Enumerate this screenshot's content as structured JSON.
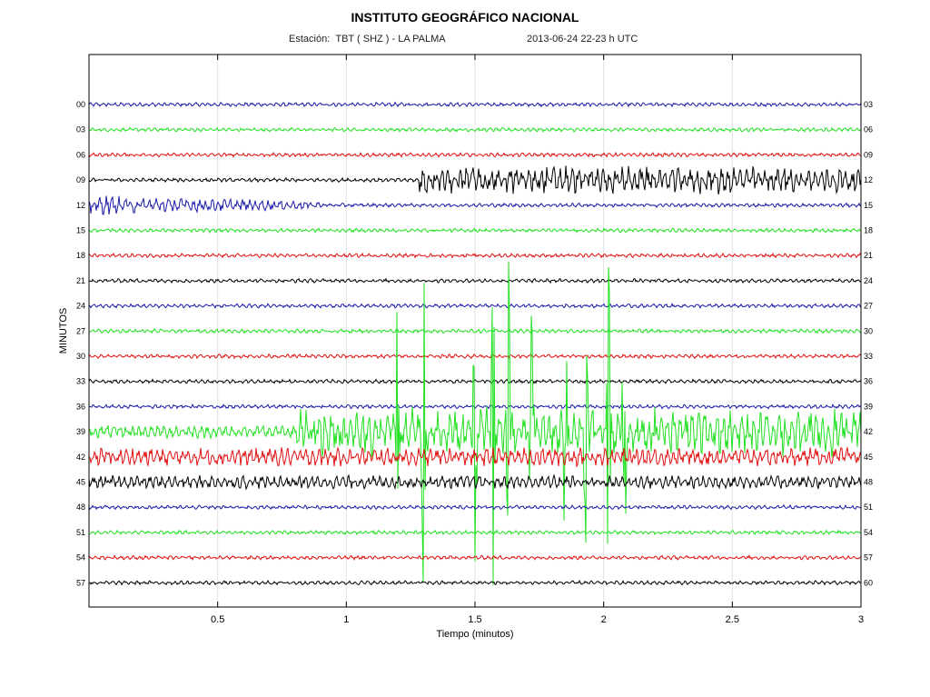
{
  "chart_data": {
    "type": "line",
    "title": "INSTITUTO GEOGRÁFICO NACIONAL",
    "subtitle": {
      "station_label": "Estación:",
      "station": "TBT ( SHZ ) - LA PALMA",
      "date": "2013-06-24  22-23 h UTC"
    },
    "xlabel": "Tiempo (minutos)",
    "ylabel": "MINUTOS",
    "xlim": [
      0,
      3
    ],
    "x_ticks": [
      "0.5",
      "1",
      "1.5",
      "2",
      "2.5",
      "3"
    ],
    "x_tick_values": [
      0.5,
      1,
      1.5,
      2,
      2.5,
      3
    ],
    "grid": "vertical",
    "trace_colors": [
      "#1a1aa8",
      "#22e022",
      "#e01010",
      "#000000"
    ],
    "rows": [
      {
        "left": "00",
        "right": "03",
        "amplitude": 0.15
      },
      {
        "left": "03",
        "right": "06",
        "amplitude": 0.15
      },
      {
        "left": "06",
        "right": "09",
        "amplitude": 0.15
      },
      {
        "left": "09",
        "right": "12",
        "amplitude": 0.15,
        "burst_start": 1.28,
        "burst_amplitude": 1.2
      },
      {
        "left": "12",
        "right": "15",
        "amplitude": 0.15,
        "early_amplitude": 0.6
      },
      {
        "left": "15",
        "right": "18",
        "amplitude": 0.15
      },
      {
        "left": "18",
        "right": "21",
        "amplitude": 0.15
      },
      {
        "left": "21",
        "right": "24",
        "amplitude": 0.15
      },
      {
        "left": "24",
        "right": "27",
        "amplitude": 0.15
      },
      {
        "left": "27",
        "right": "30",
        "amplitude": 0.15
      },
      {
        "left": "30",
        "right": "33",
        "amplitude": 0.15
      },
      {
        "left": "33",
        "right": "36",
        "amplitude": 0.15
      },
      {
        "left": "36",
        "right": "39",
        "amplitude": 0.15
      },
      {
        "left": "39",
        "right": "42",
        "amplitude": 0.5,
        "burst_start": 0.8,
        "burst_amplitude": 2.0,
        "spikes": [
          1.2,
          1.3,
          1.5,
          1.57,
          1.63,
          1.72,
          1.85,
          1.93,
          2.02,
          2.08
        ]
      },
      {
        "left": "42",
        "right": "45",
        "amplitude": 0.7
      },
      {
        "left": "45",
        "right": "48",
        "amplitude": 0.5
      },
      {
        "left": "48",
        "right": "51",
        "amplitude": 0.15
      },
      {
        "left": "51",
        "right": "54",
        "amplitude": 0.15
      },
      {
        "left": "54",
        "right": "57",
        "amplitude": 0.15
      },
      {
        "left": "57",
        "right": "60",
        "amplitude": 0.15
      }
    ]
  }
}
